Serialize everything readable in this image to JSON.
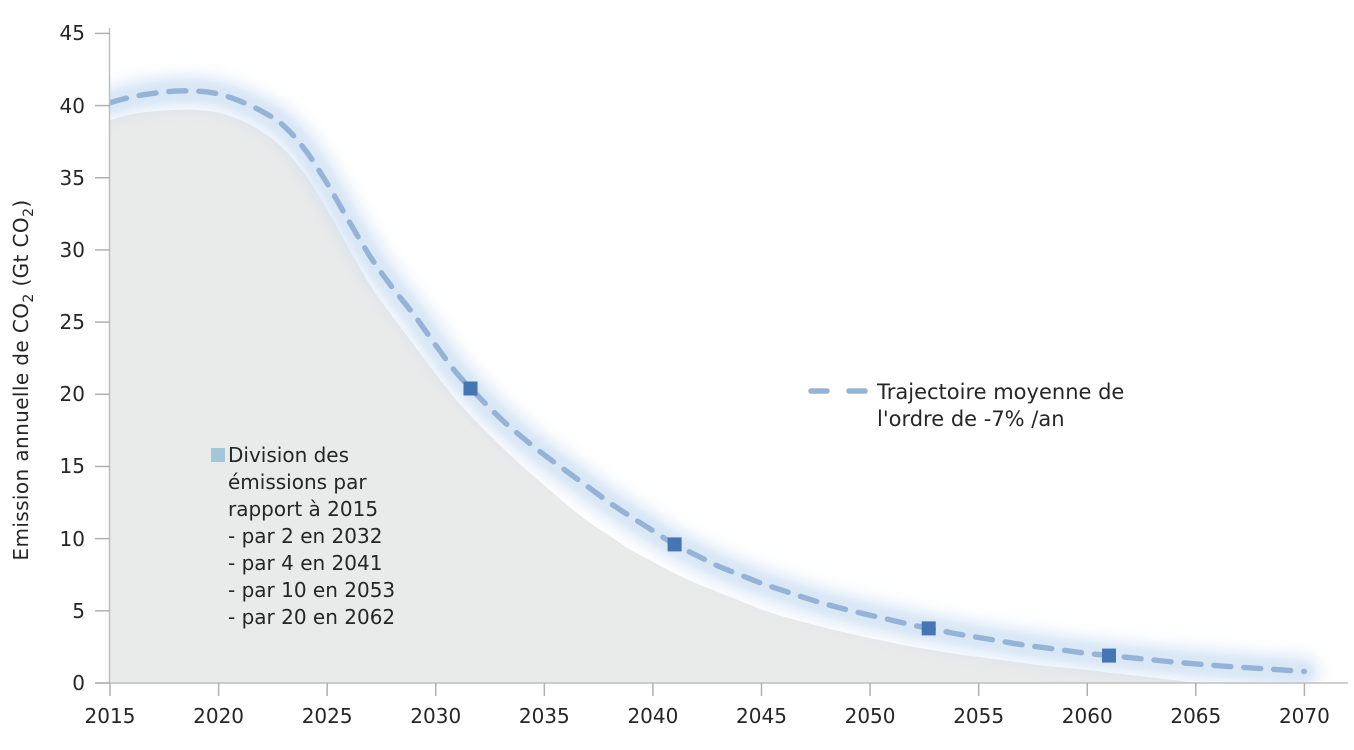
{
  "figure": {
    "background": "#ffffff"
  },
  "colors": {
    "axis_line": "#bfbfbf",
    "tick_line": "#b0b0b0",
    "label_text": "#262626",
    "area_fill": "#e9eaea",
    "trajectory_line": "#95b3d7",
    "trajectory_glow_outer": "#c8dcf2",
    "trajectory_glow_inner": "#d9e7f6",
    "marker_fill": "#4575b4",
    "annotation_bullet": "#a3c7d9"
  },
  "chart_data": {
    "type": "area+line",
    "title": "",
    "xlabel": "",
    "ylabel": "Emission annuelle de CO2 (Gt CO2)",
    "grid": false,
    "axes": {
      "x": {
        "range": [
          2015,
          2070
        ],
        "ticks": [
          2015,
          2020,
          2025,
          2030,
          2035,
          2040,
          2045,
          2050,
          2055,
          2060,
          2065,
          2070
        ]
      },
      "y": {
        "range": [
          0,
          45
        ],
        "ticks": [
          0,
          5,
          10,
          15,
          20,
          25,
          30,
          35,
          40,
          45
        ],
        "title_segments": [
          {
            "text": "Emission annuelle de CO"
          },
          {
            "text": "2",
            "sub": true
          },
          {
            "text": " (Gt CO"
          },
          {
            "text": "2",
            "sub": true
          },
          {
            "text": ")"
          }
        ]
      }
    },
    "series": [
      {
        "id": "emissions-area",
        "type": "area",
        "color": "#e9eaea",
        "points": [
          [
            2015,
            39.0
          ],
          [
            2016,
            39.4
          ],
          [
            2017,
            39.6
          ],
          [
            2018,
            39.7
          ],
          [
            2019,
            39.7
          ],
          [
            2020,
            39.5
          ],
          [
            2021,
            39.0
          ],
          [
            2022,
            38.2
          ],
          [
            2023,
            37.0
          ],
          [
            2024,
            35.2
          ],
          [
            2025,
            32.8
          ],
          [
            2026,
            30.1
          ],
          [
            2027,
            27.5
          ],
          [
            2028,
            25.4
          ],
          [
            2029,
            23.4
          ],
          [
            2030,
            21.4
          ],
          [
            2031,
            19.5
          ],
          [
            2032,
            17.9
          ],
          [
            2033,
            16.4
          ],
          [
            2034,
            15.0
          ],
          [
            2035,
            13.7
          ],
          [
            2036,
            12.4
          ],
          [
            2037,
            11.2
          ],
          [
            2038,
            10.2
          ],
          [
            2039,
            9.2
          ],
          [
            2040,
            8.4
          ],
          [
            2041,
            7.6
          ],
          [
            2042,
            6.9
          ],
          [
            2043,
            6.3
          ],
          [
            2044,
            5.7
          ],
          [
            2045,
            5.1
          ],
          [
            2046,
            4.6
          ],
          [
            2047,
            4.2
          ],
          [
            2048,
            3.8
          ],
          [
            2049,
            3.45
          ],
          [
            2050,
            3.1
          ],
          [
            2051,
            2.8
          ],
          [
            2052,
            2.5
          ],
          [
            2053,
            2.25
          ],
          [
            2054,
            2.0
          ],
          [
            2055,
            1.8
          ],
          [
            2056,
            1.6
          ],
          [
            2057,
            1.4
          ],
          [
            2058,
            1.2
          ],
          [
            2059,
            1.05
          ],
          [
            2060,
            0.9
          ],
          [
            2061,
            0.72
          ],
          [
            2062,
            0.55
          ],
          [
            2063,
            0.38
          ],
          [
            2064,
            0.2
          ],
          [
            2064.8,
            0.05
          ]
        ]
      },
      {
        "id": "trajectory",
        "type": "dashed_line",
        "color": "#95b3d7",
        "glow_outer": "#c8dcf2",
        "glow_inner": "#d9e7f6",
        "marker_color": "#4575b4",
        "legend_label_lines": [
          "Trajectoire moyenne de",
          "l'ordre de -7% /an"
        ],
        "points": [
          [
            2015,
            40.2
          ],
          [
            2016,
            40.6
          ],
          [
            2017,
            40.85
          ],
          [
            2018,
            41.0
          ],
          [
            2019,
            41.0
          ],
          [
            2020,
            40.8
          ],
          [
            2021,
            40.3
          ],
          [
            2022,
            39.6
          ],
          [
            2023,
            38.6
          ],
          [
            2024,
            36.9
          ],
          [
            2025,
            34.6
          ],
          [
            2026,
            32.0
          ],
          [
            2027,
            29.5
          ],
          [
            2028,
            27.4
          ],
          [
            2029,
            25.5
          ],
          [
            2030,
            23.4
          ],
          [
            2031,
            21.4
          ],
          [
            2032,
            19.8
          ],
          [
            2033,
            18.3
          ],
          [
            2034,
            17.0
          ],
          [
            2035,
            15.8
          ],
          [
            2036,
            14.7
          ],
          [
            2037,
            13.6
          ],
          [
            2038,
            12.5
          ],
          [
            2039,
            11.5
          ],
          [
            2040,
            10.55
          ],
          [
            2041,
            9.6
          ],
          [
            2042,
            8.85
          ],
          [
            2043,
            8.1
          ],
          [
            2044,
            7.5
          ],
          [
            2045,
            6.9
          ],
          [
            2046,
            6.4
          ],
          [
            2047,
            5.9
          ],
          [
            2048,
            5.45
          ],
          [
            2049,
            5.05
          ],
          [
            2050,
            4.7
          ],
          [
            2051,
            4.35
          ],
          [
            2052,
            4.0
          ],
          [
            2053,
            3.7
          ],
          [
            2054,
            3.4
          ],
          [
            2055,
            3.15
          ],
          [
            2056,
            2.9
          ],
          [
            2057,
            2.65
          ],
          [
            2058,
            2.45
          ],
          [
            2059,
            2.25
          ],
          [
            2060,
            2.05
          ],
          [
            2061,
            1.9
          ],
          [
            2062,
            1.75
          ],
          [
            2063,
            1.6
          ],
          [
            2064,
            1.45
          ],
          [
            2065,
            1.32
          ],
          [
            2066,
            1.2
          ],
          [
            2067,
            1.1
          ],
          [
            2068,
            1.0
          ],
          [
            2069,
            0.9
          ],
          [
            2070,
            0.8
          ]
        ],
        "markers": [
          [
            2031.6,
            20.4
          ],
          [
            2041,
            9.6
          ],
          [
            2052.7,
            3.78
          ],
          [
            2061,
            1.9
          ]
        ]
      }
    ],
    "annotation": {
      "bullet_color": "#a3c7d9",
      "lines": [
        "Division des",
        "émissions par",
        "rapport à 2015",
        "- par 2 en 2032",
        "- par 4 en 2041",
        "- par 10 en 2053",
        "- par 20 en 2062"
      ]
    },
    "legend": {
      "position": "right-middle"
    }
  }
}
